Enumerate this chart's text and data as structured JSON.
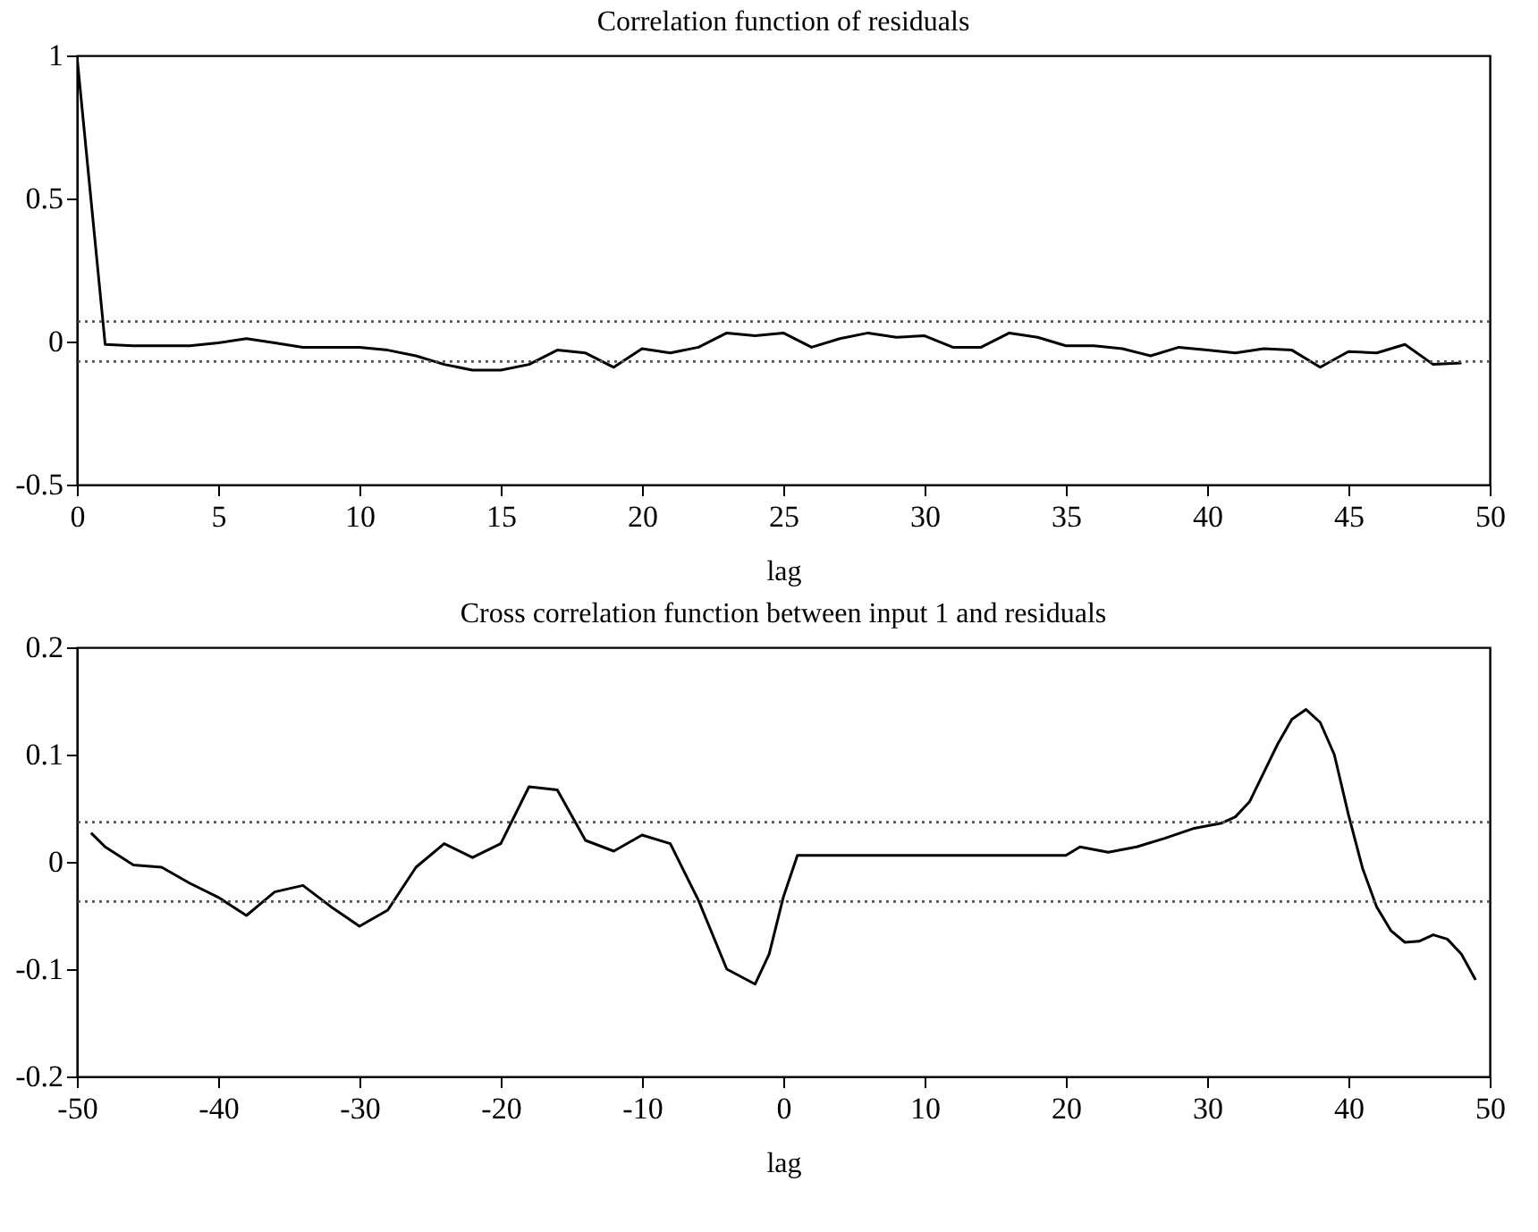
{
  "chart_data": [
    {
      "type": "line",
      "title": "Correlation function of residuals",
      "xlabel": "lag",
      "x": [
        0,
        1,
        2,
        3,
        4,
        5,
        6,
        7,
        8,
        9,
        10,
        11,
        12,
        13,
        14,
        15,
        16,
        17,
        18,
        19,
        20,
        21,
        22,
        23,
        24,
        25,
        26,
        27,
        28,
        29,
        30,
        31,
        32,
        33,
        34,
        35,
        36,
        37,
        38,
        39,
        40,
        41,
        42,
        43,
        44,
        45,
        46,
        47,
        48,
        49
      ],
      "series": [
        {
          "color": "#000000",
          "values": [
            1,
            -0.01,
            -0.015,
            -0.015,
            -0.015,
            -0.005,
            0.01,
            -0.005,
            -0.02,
            -0.02,
            -0.02,
            -0.03,
            -0.05,
            -0.08,
            -0.1,
            -0.1,
            -0.08,
            -0.03,
            -0.04,
            -0.09,
            -0.025,
            -0.04,
            -0.02,
            0.03,
            0.02,
            0.03,
            -0.02,
            0.01,
            0.03,
            0.015,
            0.02,
            -0.02,
            -0.02,
            0.03,
            0.015,
            -0.015,
            -0.015,
            -0.025,
            -0.05,
            -0.02,
            -0.03,
            -0.04,
            -0.025,
            -0.03,
            -0.09,
            -0.035,
            -0.04,
            -0.01,
            -0.08,
            -0.075
          ]
        }
      ],
      "xlim": [
        0,
        50
      ],
      "xticks": [
        0,
        5,
        10,
        15,
        20,
        25,
        30,
        35,
        40,
        45,
        50
      ],
      "ylim": [
        -0.5,
        1
      ],
      "yticks": [
        -0.5,
        0,
        0.5,
        1
      ],
      "ref_lines": [
        {
          "axis": "y",
          "value": 0.07,
          "line_style": "dotted"
        },
        {
          "axis": "y",
          "value": -0.07,
          "line_style": "dotted"
        }
      ]
    },
    {
      "type": "line",
      "title": "Cross correlation function between input 1 and residuals",
      "xlabel": "lag",
      "x": [
        -49,
        -48,
        -46,
        -44,
        -42,
        -40,
        -38,
        -36,
        -34,
        -32,
        -30,
        -28,
        -26,
        -24,
        -22,
        -20,
        -18,
        -16,
        -14,
        -12,
        -10,
        -8,
        -6,
        -4,
        -2,
        -1,
        0,
        1,
        19,
        20,
        21,
        23,
        25,
        27,
        29,
        31,
        32,
        33,
        34,
        35,
        36,
        37,
        38,
        39,
        40,
        41,
        42,
        43,
        44,
        45,
        46,
        47,
        48,
        49
      ],
      "series": [
        {
          "color": "#000000",
          "values": [
            0.027,
            0.014,
            -0.003,
            -0.005,
            -0.02,
            -0.033,
            -0.05,
            -0.028,
            -0.022,
            -0.042,
            -0.06,
            -0.045,
            -0.005,
            0.017,
            0.004,
            0.017,
            0.07,
            0.067,
            0.02,
            0.01,
            0.025,
            0.017,
            -0.036,
            -0.1,
            -0.114,
            -0.086,
            -0.033,
            0.006,
            0.006,
            0.006,
            0.014,
            0.009,
            0.014,
            0.022,
            0.031,
            0.036,
            0.042,
            0.056,
            0.083,
            0.11,
            0.133,
            0.142,
            0.13,
            0.1,
            0.044,
            -0.006,
            -0.042,
            -0.064,
            -0.075,
            -0.074,
            -0.068,
            -0.072,
            -0.086,
            -0.11
          ]
        }
      ],
      "xlim": [
        -50,
        50
      ],
      "xticks": [
        -50,
        -40,
        -30,
        -20,
        -10,
        0,
        10,
        20,
        30,
        40,
        50
      ],
      "ylim": [
        -0.2,
        0.2
      ],
      "yticks": [
        -0.2,
        -0.1,
        0,
        0.1,
        0.2
      ],
      "ref_lines": [
        {
          "axis": "y",
          "value": 0.037,
          "line_style": "dotted"
        },
        {
          "axis": "y",
          "value": -0.037,
          "line_style": "dotted"
        }
      ]
    }
  ]
}
